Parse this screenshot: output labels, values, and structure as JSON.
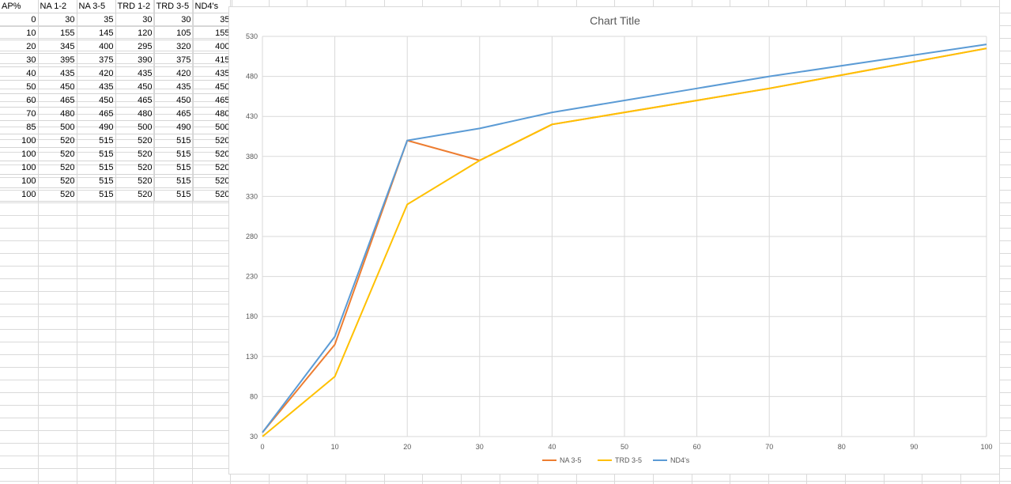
{
  "sheet": {
    "headers": [
      "AP%",
      "NA 1-2",
      "NA 3-5",
      "TRD 1-2",
      "TRD 3-5",
      "ND4's"
    ],
    "rows": [
      [
        "0",
        "30",
        "35",
        "30",
        "30",
        "35"
      ],
      [
        "10",
        "155",
        "145",
        "120",
        "105",
        "155"
      ],
      [
        "20",
        "345",
        "400",
        "295",
        "320",
        "400"
      ],
      [
        "30",
        "395",
        "375",
        "390",
        "375",
        "415"
      ],
      [
        "40",
        "435",
        "420",
        "435",
        "420",
        "435"
      ],
      [
        "50",
        "450",
        "435",
        "450",
        "435",
        "450"
      ],
      [
        "60",
        "465",
        "450",
        "465",
        "450",
        "465"
      ],
      [
        "70",
        "480",
        "465",
        "480",
        "465",
        "480"
      ],
      [
        "85",
        "500",
        "490",
        "500",
        "490",
        "500"
      ],
      [
        "100",
        "520",
        "515",
        "520",
        "515",
        "520"
      ],
      [
        "100",
        "520",
        "515",
        "520",
        "515",
        "520"
      ],
      [
        "100",
        "520",
        "515",
        "520",
        "515",
        "520"
      ],
      [
        "100",
        "520",
        "515",
        "520",
        "515",
        "520"
      ],
      [
        "100",
        "520",
        "515",
        "520",
        "515",
        "520"
      ]
    ]
  },
  "chart_data": {
    "type": "line",
    "title": "Chart Title",
    "xlabel": "",
    "ylabel": "",
    "x_ticks": [
      0,
      10,
      20,
      30,
      40,
      50,
      60,
      70,
      80,
      90,
      100
    ],
    "y_ticks": [
      30,
      80,
      130,
      180,
      230,
      280,
      330,
      380,
      430,
      480,
      530
    ],
    "xlim": [
      0,
      100
    ],
    "ylim": [
      30,
      530
    ],
    "grid": true,
    "legend_position": "bottom",
    "series": [
      {
        "name": "NA 3-5",
        "color": "#ED7D31",
        "x": [
          0,
          10,
          20,
          30,
          40,
          50,
          60,
          70,
          85,
          100
        ],
        "y": [
          35,
          145,
          400,
          375,
          420,
          435,
          450,
          465,
          490,
          515
        ]
      },
      {
        "name": "TRD 3-5",
        "color": "#FFC000",
        "x": [
          0,
          10,
          20,
          30,
          40,
          50,
          60,
          70,
          85,
          100
        ],
        "y": [
          30,
          105,
          320,
          375,
          420,
          435,
          450,
          465,
          490,
          515
        ]
      },
      {
        "name": "ND4's",
        "color": "#5B9BD5",
        "x": [
          0,
          10,
          20,
          30,
          40,
          50,
          60,
          70,
          85,
          100
        ],
        "y": [
          35,
          155,
          400,
          415,
          435,
          450,
          465,
          480,
          500,
          520
        ]
      }
    ]
  }
}
